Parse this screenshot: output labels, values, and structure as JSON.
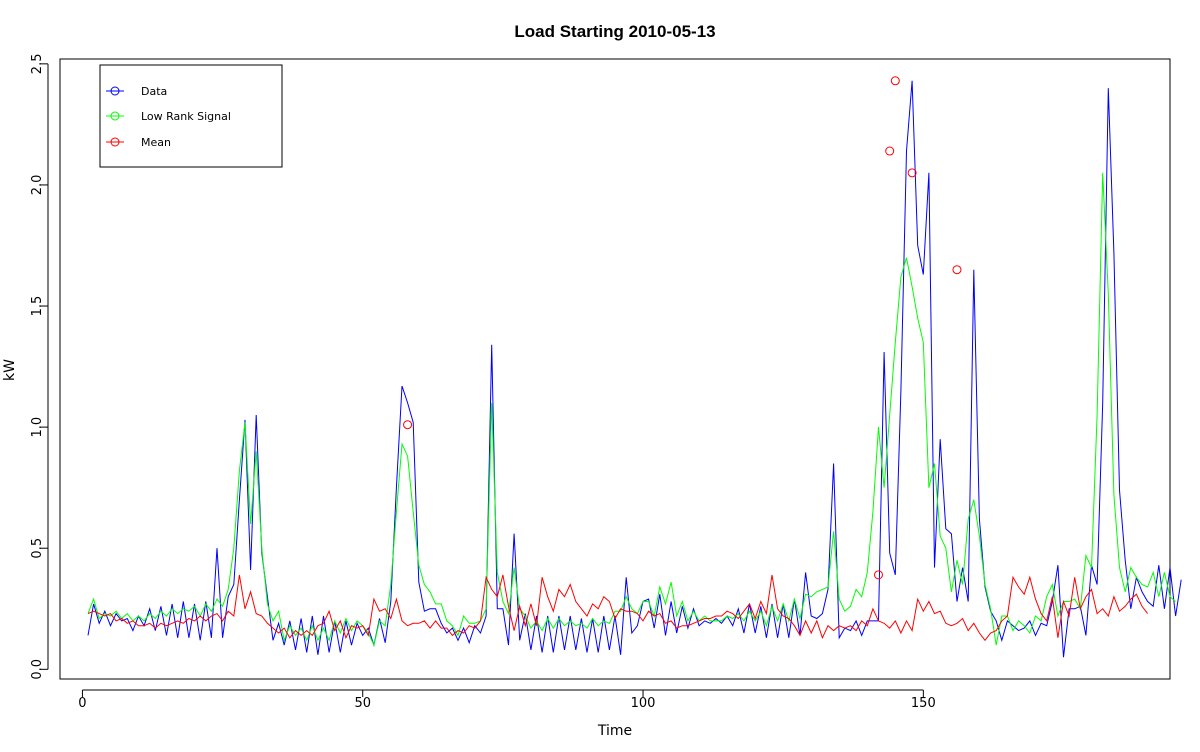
{
  "chart_data": {
    "type": "line",
    "title": "Load Starting 2010-05-13",
    "xlabel": "Time",
    "ylabel": "kW",
    "xlim": [
      -4,
      194
    ],
    "ylim": [
      -0.04,
      2.52
    ],
    "xticks": [
      0,
      50,
      100,
      150
    ],
    "yticks": [
      0.0,
      0.5,
      1.0,
      1.5,
      2.0,
      2.5
    ],
    "xtick_labels": [
      "0",
      "50",
      "100",
      "150"
    ],
    "ytick_labels": [
      "0.0",
      "0.5",
      "1.0",
      "1.5",
      "2.0",
      "2.5"
    ],
    "legend": {
      "position": "top-left",
      "entries": [
        "Data",
        "Low Rank Signal",
        "Mean"
      ]
    },
    "series": [
      {
        "name": "Data",
        "color": "#0000ff",
        "marker": "none",
        "values": [
          0.14,
          0.27,
          0.19,
          0.24,
          0.18,
          0.23,
          0.2,
          0.21,
          0.16,
          0.22,
          0.18,
          0.25,
          0.16,
          0.26,
          0.14,
          0.27,
          0.13,
          0.28,
          0.13,
          0.27,
          0.12,
          0.28,
          0.13,
          0.5,
          0.13,
          0.3,
          0.35,
          0.7,
          1.03,
          0.41,
          1.05,
          0.48,
          0.3,
          0.12,
          0.19,
          0.1,
          0.2,
          0.08,
          0.21,
          0.07,
          0.22,
          0.06,
          0.22,
          0.07,
          0.2,
          0.07,
          0.2,
          0.1,
          0.19,
          0.14,
          0.17,
          0.1,
          0.21,
          0.11,
          0.28,
          0.75,
          1.17,
          1.1,
          1.02,
          0.36,
          0.24,
          0.25,
          0.25,
          0.19,
          0.15,
          0.17,
          0.12,
          0.17,
          0.11,
          0.18,
          0.15,
          0.22,
          1.34,
          0.25,
          0.25,
          0.1,
          0.56,
          0.12,
          0.23,
          0.08,
          0.22,
          0.07,
          0.22,
          0.07,
          0.22,
          0.08,
          0.22,
          0.08,
          0.21,
          0.07,
          0.21,
          0.07,
          0.22,
          0.08,
          0.22,
          0.06,
          0.38,
          0.15,
          0.18,
          0.28,
          0.29,
          0.17,
          0.31,
          0.14,
          0.28,
          0.15,
          0.26,
          0.17,
          0.25,
          0.18,
          0.2,
          0.19,
          0.21,
          0.19,
          0.22,
          0.18,
          0.25,
          0.15,
          0.27,
          0.15,
          0.26,
          0.13,
          0.27,
          0.13,
          0.27,
          0.13,
          0.29,
          0.14,
          0.4,
          0.22,
          0.21,
          0.23,
          0.33,
          0.85,
          0.13,
          0.17,
          0.16,
          0.2,
          0.14,
          0.2,
          0.2,
          0.2,
          1.31,
          0.48,
          0.39,
          1.15,
          2.14,
          2.43,
          1.75,
          1.63,
          2.05,
          0.42,
          0.95,
          0.58,
          0.56,
          0.28,
          0.42,
          0.28,
          1.65,
          0.62,
          0.34,
          0.24,
          0.2,
          0.12,
          0.2,
          0.18,
          0.16,
          0.17,
          0.2,
          0.14,
          0.19,
          0.18,
          0.28,
          0.43,
          0.05,
          0.25,
          0.25,
          0.26,
          0.14,
          0.43,
          0.35,
          1.1,
          2.4,
          1.72,
          0.74,
          0.45,
          0.25,
          0.38,
          0.32,
          0.28,
          0.26,
          0.43,
          0.25,
          0.42,
          0.22,
          0.37
        ]
      },
      {
        "name": "Low Rank Signal",
        "color": "#00ff00",
        "marker": "none",
        "values": [
          0.23,
          0.29,
          0.21,
          0.23,
          0.22,
          0.24,
          0.21,
          0.23,
          0.2,
          0.22,
          0.2,
          0.23,
          0.21,
          0.24,
          0.22,
          0.25,
          0.23,
          0.25,
          0.24,
          0.26,
          0.22,
          0.27,
          0.24,
          0.29,
          0.26,
          0.33,
          0.5,
          0.82,
          1.02,
          0.6,
          0.9,
          0.5,
          0.27,
          0.2,
          0.24,
          0.12,
          0.18,
          0.14,
          0.17,
          0.12,
          0.18,
          0.12,
          0.17,
          0.12,
          0.2,
          0.15,
          0.21,
          0.16,
          0.2,
          0.18,
          0.15,
          0.1,
          0.2,
          0.18,
          0.35,
          0.65,
          0.93,
          0.88,
          0.65,
          0.43,
          0.35,
          0.32,
          0.27,
          0.27,
          0.2,
          0.18,
          0.14,
          0.22,
          0.19,
          0.19,
          0.2,
          0.25,
          1.1,
          0.4,
          0.28,
          0.23,
          0.42,
          0.25,
          0.22,
          0.17,
          0.2,
          0.16,
          0.21,
          0.17,
          0.21,
          0.18,
          0.2,
          0.18,
          0.19,
          0.17,
          0.21,
          0.18,
          0.2,
          0.19,
          0.24,
          0.24,
          0.3,
          0.25,
          0.23,
          0.28,
          0.28,
          0.22,
          0.34,
          0.27,
          0.36,
          0.22,
          0.28,
          0.2,
          0.24,
          0.2,
          0.22,
          0.2,
          0.2,
          0.2,
          0.22,
          0.21,
          0.23,
          0.2,
          0.24,
          0.2,
          0.24,
          0.18,
          0.26,
          0.2,
          0.27,
          0.2,
          0.29,
          0.21,
          0.31,
          0.3,
          0.32,
          0.33,
          0.34,
          0.57,
          0.29,
          0.24,
          0.26,
          0.33,
          0.3,
          0.4,
          0.65,
          1.0,
          0.75,
          1.05,
          1.35,
          1.62,
          1.7,
          1.58,
          1.45,
          1.35,
          0.75,
          0.85,
          0.55,
          0.5,
          0.32,
          0.45,
          0.35,
          0.62,
          0.7,
          0.55,
          0.35,
          0.25,
          0.1,
          0.22,
          0.22,
          0.16,
          0.2,
          0.18,
          0.15,
          0.22,
          0.2,
          0.3,
          0.35,
          0.22,
          0.28,
          0.28,
          0.29,
          0.25,
          0.47,
          0.42,
          1.05,
          2.05,
          1.55,
          0.72,
          0.42,
          0.32,
          0.42,
          0.38,
          0.35,
          0.34,
          0.4,
          0.3,
          0.4,
          0.3,
          0.28
        ]
      },
      {
        "name": "Mean",
        "color": "#ff0000",
        "marker": "none",
        "values": [
          0.23,
          0.24,
          0.23,
          0.22,
          0.23,
          0.2,
          0.21,
          0.19,
          0.2,
          0.18,
          0.18,
          0.19,
          0.17,
          0.19,
          0.18,
          0.19,
          0.2,
          0.19,
          0.21,
          0.2,
          0.22,
          0.2,
          0.22,
          0.23,
          0.2,
          0.24,
          0.22,
          0.39,
          0.25,
          0.32,
          0.23,
          0.22,
          0.19,
          0.17,
          0.15,
          0.17,
          0.13,
          0.16,
          0.14,
          0.16,
          0.14,
          0.18,
          0.19,
          0.24,
          0.16,
          0.2,
          0.13,
          0.18,
          0.17,
          0.18,
          0.14,
          0.29,
          0.24,
          0.25,
          0.21,
          0.29,
          0.2,
          0.18,
          0.19,
          0.19,
          0.2,
          0.17,
          0.2,
          0.17,
          0.17,
          0.14,
          0.16,
          0.15,
          0.18,
          0.17,
          0.2,
          0.38,
          0.33,
          0.3,
          0.39,
          0.26,
          0.16,
          0.26,
          0.18,
          0.27,
          0.18,
          0.38,
          0.3,
          0.24,
          0.33,
          0.3,
          0.35,
          0.28,
          0.25,
          0.22,
          0.27,
          0.25,
          0.3,
          0.28,
          0.21,
          0.25,
          0.24,
          0.24,
          0.23,
          0.2,
          0.24,
          0.22,
          0.23,
          0.19,
          0.2,
          0.17,
          0.18,
          0.18,
          0.19,
          0.2,
          0.21,
          0.21,
          0.22,
          0.22,
          0.24,
          0.23,
          0.21,
          0.24,
          0.27,
          0.21,
          0.28,
          0.23,
          0.39,
          0.25,
          0.22,
          0.21,
          0.18,
          0.14,
          0.2,
          0.15,
          0.2,
          0.13,
          0.18,
          0.16,
          0.18,
          0.17,
          0.18,
          0.16,
          0.2,
          0.18,
          0.25,
          0.2,
          0.19,
          0.17,
          0.2,
          0.15,
          0.2,
          0.16,
          0.29,
          0.24,
          0.28,
          0.23,
          0.24,
          0.19,
          0.18,
          0.19,
          0.21,
          0.16,
          0.19,
          0.15,
          0.12,
          0.15,
          0.16,
          0.2,
          0.22,
          0.38,
          0.34,
          0.31,
          0.38,
          0.29,
          0.23,
          0.2,
          0.3,
          0.13,
          0.28,
          0.22,
          0.38,
          0.25,
          0.3,
          0.33,
          0.23,
          0.25,
          0.22,
          0.3,
          0.24,
          0.26,
          0.29,
          0.31,
          0.26,
          0.23
        ]
      }
    ],
    "highlighted_points": {
      "color": "#ff0000",
      "marker": "open-circle",
      "points": [
        {
          "x": 58,
          "y": 1.01
        },
        {
          "x": 142,
          "y": 0.39
        },
        {
          "x": 144,
          "y": 2.14
        },
        {
          "x": 145,
          "y": 2.43
        },
        {
          "x": 148,
          "y": 2.05
        },
        {
          "x": 156,
          "y": 1.65
        }
      ]
    }
  }
}
